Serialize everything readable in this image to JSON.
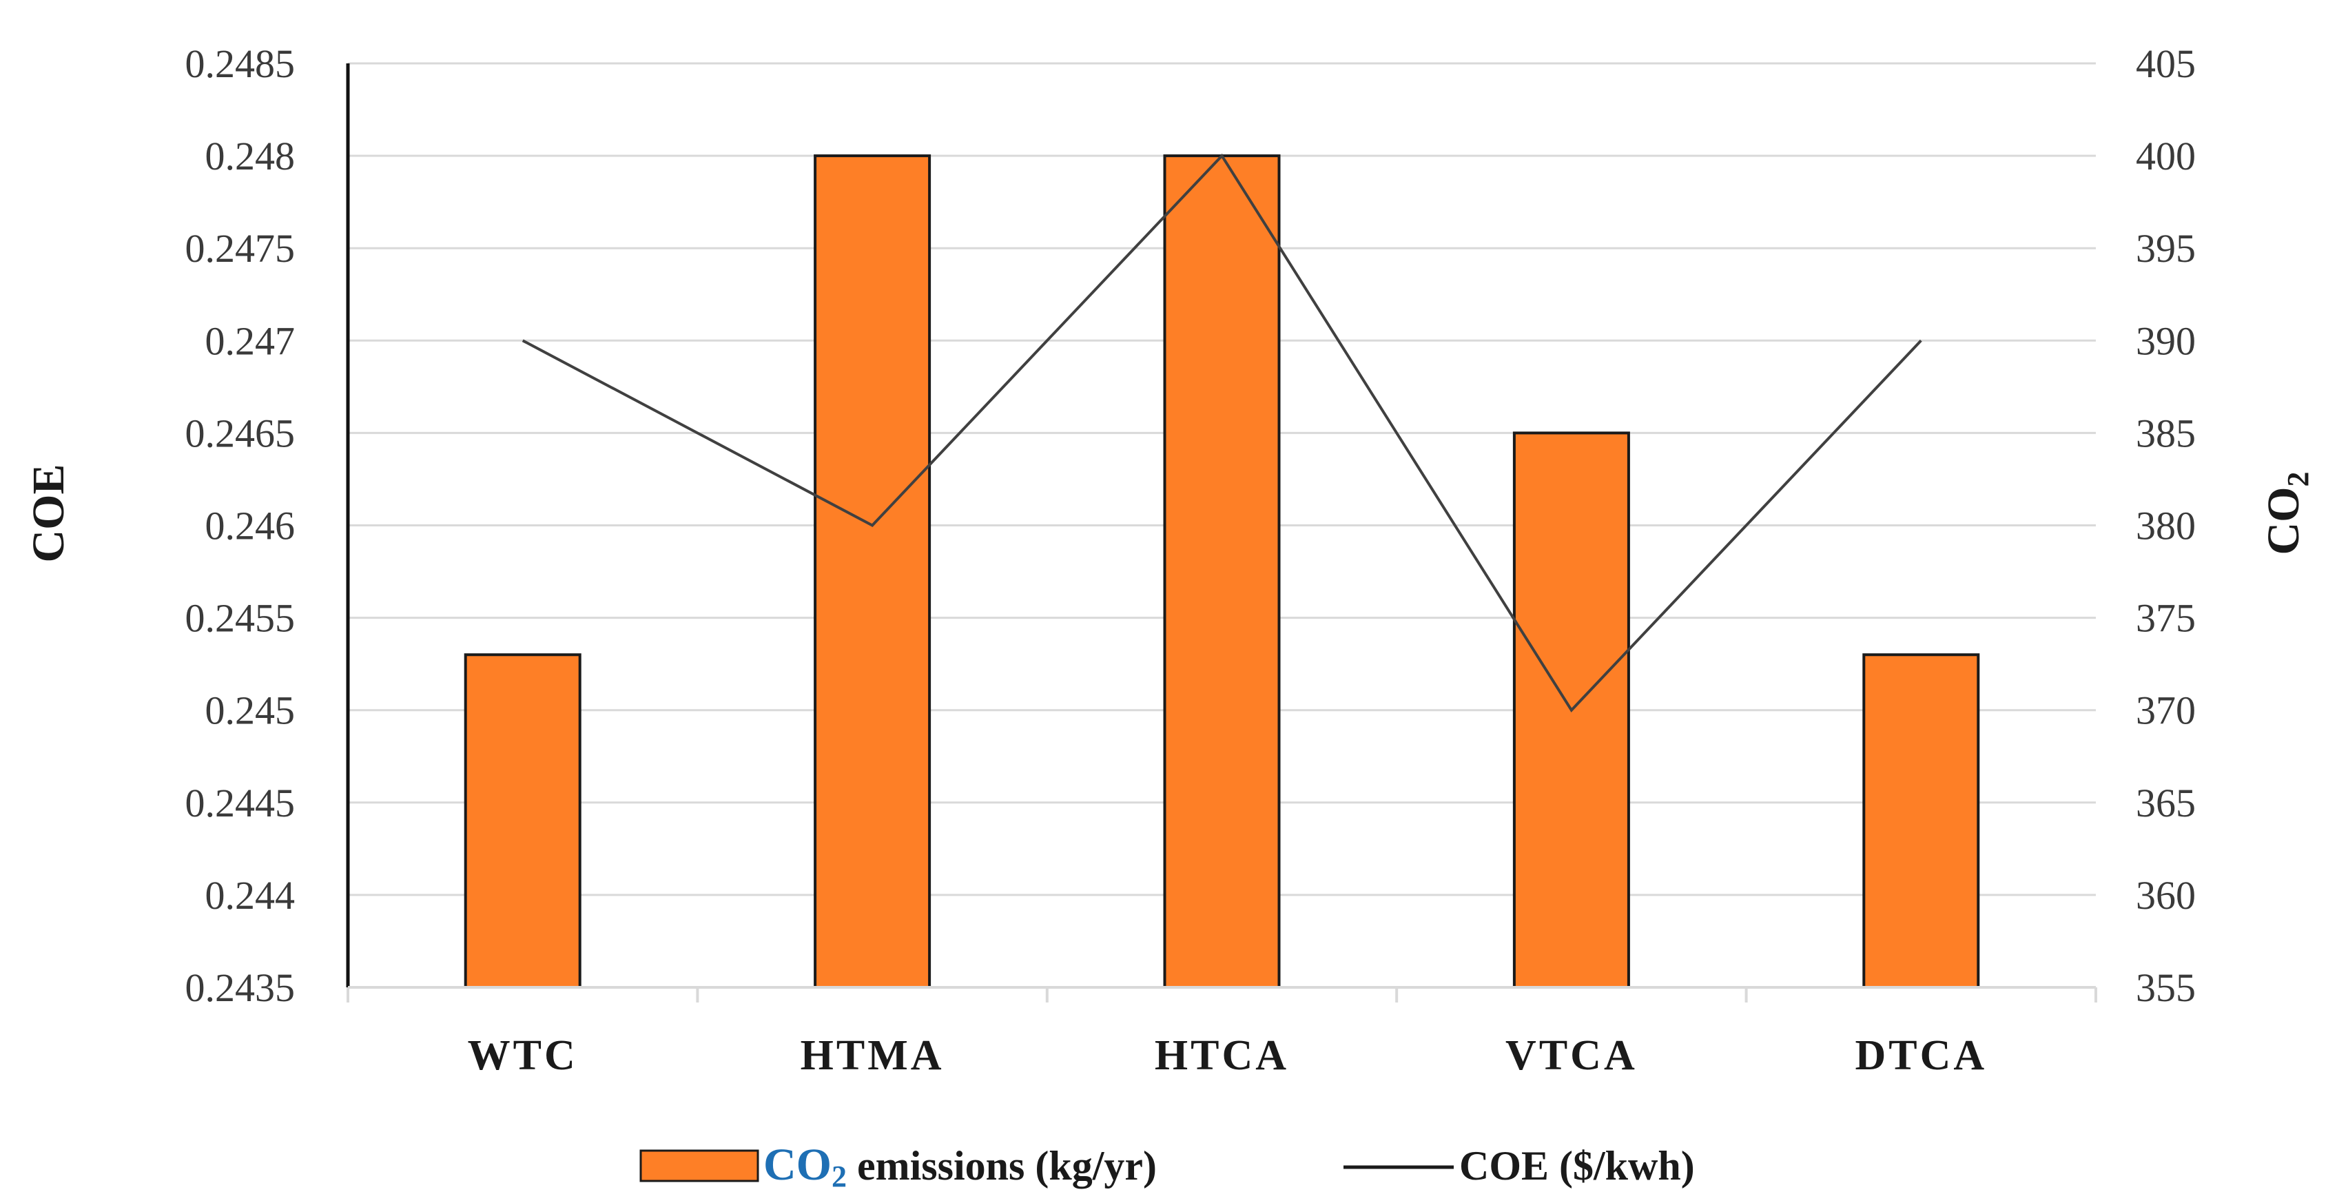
{
  "chart_data": {
    "type": "bar+line",
    "categories": [
      "WTC",
      "HTMA",
      "HTCA",
      "VTCA",
      "DTCA"
    ],
    "series": [
      {
        "name": "CO₂ emissions (kg/yr)",
        "legend_main": "CO",
        "legend_sub": "2",
        "legend_rest": " emissions (kg/yr)",
        "type": "bar",
        "axis": "right",
        "values": [
          373,
          400,
          400,
          385,
          373
        ],
        "color": "#FE7F26"
      },
      {
        "name": "COE ($/kwh)",
        "type": "line",
        "axis": "left",
        "values": [
          0.247,
          0.246,
          0.248,
          0.245,
          0.247
        ],
        "color": "#404040"
      }
    ],
    "left_axis": {
      "title": "COE",
      "ylim": [
        0.2435,
        0.2485
      ],
      "ticks": [
        "0.2435",
        "0.244",
        "0.2445",
        "0.245",
        "0.2455",
        "0.246",
        "0.2465",
        "0.247",
        "0.2475",
        "0.248",
        "0.2485"
      ]
    },
    "right_axis": {
      "title_main": "CO",
      "title_sub": "2",
      "ylim": [
        355,
        405
      ],
      "ticks": [
        "355",
        "360",
        "365",
        "370",
        "375",
        "380",
        "385",
        "390",
        "395",
        "400",
        "405"
      ]
    },
    "grid": true,
    "legend": "bottom-center"
  }
}
